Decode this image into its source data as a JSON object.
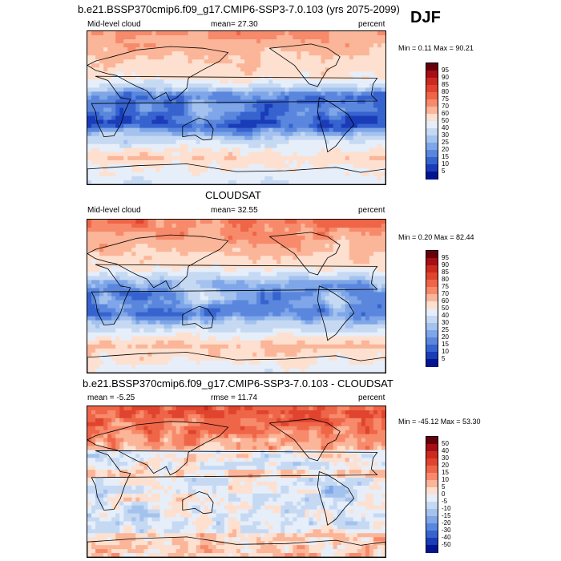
{
  "season": "DJF",
  "chart_data": [
    {
      "type": "heatmap",
      "title": "b.e21.BSSP370cmip6.f09_g17.CMIP6-SSP3-7.0.103 (yrs 2075-2099)",
      "left_label": "Mid-level cloud",
      "center_label": "mean=  27.30",
      "units": "percent",
      "minmax": "Min =   0.11 Max =  90.21",
      "mean": 27.3,
      "min": 0.11,
      "max": 90.21,
      "levels": [
        "95",
        "90",
        "85",
        "80",
        "75",
        "70",
        "60",
        "50",
        "40",
        "30",
        "25",
        "20",
        "15",
        "10",
        "5"
      ],
      "colors": [
        "#67000d",
        "#a50f15",
        "#cb2a1f",
        "#e0442e",
        "#ef6548",
        "#f78a6b",
        "#fbb598",
        "#fde0cf",
        "#e6eefa",
        "#c6d9f3",
        "#a4c2ee",
        "#7ea6e8",
        "#5a87dd",
        "#3763cf",
        "#1a3cb8",
        "#00158f"
      ]
    },
    {
      "type": "heatmap",
      "title": "CLOUDSAT",
      "left_label": "Mid-level cloud",
      "center_label": "mean=  32.55",
      "units": "percent",
      "minmax": "Min =   0.20 Max =  82.44",
      "mean": 32.55,
      "min": 0.2,
      "max": 82.44,
      "levels": [
        "95",
        "90",
        "85",
        "80",
        "75",
        "70",
        "60",
        "50",
        "40",
        "30",
        "25",
        "20",
        "15",
        "10",
        "5"
      ],
      "colors": [
        "#67000d",
        "#a50f15",
        "#cb2a1f",
        "#e0442e",
        "#ef6548",
        "#f78a6b",
        "#fbb598",
        "#fde0cf",
        "#e6eefa",
        "#c6d9f3",
        "#a4c2ee",
        "#7ea6e8",
        "#5a87dd",
        "#3763cf",
        "#1a3cb8",
        "#00158f"
      ]
    },
    {
      "type": "heatmap",
      "title": "b.e21.BSSP370cmip6.f09_g17.CMIP6-SSP3-7.0.103 - CLOUDSAT",
      "left_label": "mean =  -5.25",
      "center_label": "rmse =  11.74",
      "units": "percent",
      "minmax": "Min = -45.12 Max =  53.30",
      "mean": -5.25,
      "rmse": 11.74,
      "min": -45.12,
      "max": 53.3,
      "levels": [
        "50",
        "40",
        "30",
        "20",
        "15",
        "10",
        "5",
        "0",
        "-5",
        "-10",
        "-15",
        "-20",
        "-30",
        "-40",
        "-50"
      ],
      "colors": [
        "#67000d",
        "#a50f15",
        "#cb2a1f",
        "#e0442e",
        "#ef6548",
        "#f78a6b",
        "#fbb598",
        "#fde0cf",
        "#e6eefa",
        "#c6d9f3",
        "#a4c2ee",
        "#7ea6e8",
        "#5a87dd",
        "#3763cf",
        "#1a3cb8",
        "#00158f"
      ]
    }
  ]
}
